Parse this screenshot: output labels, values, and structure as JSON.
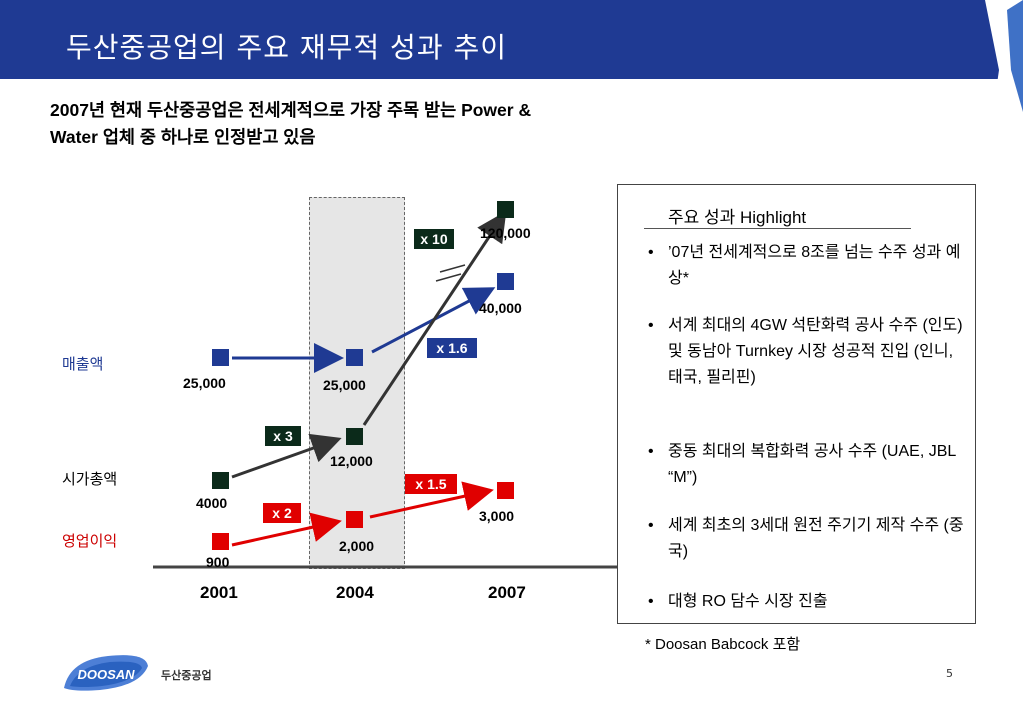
{
  "title": "두산중공업의 주요 재무적 성과 추이",
  "subtitle_line1": "2007년 현재 두산중공업은 전세계적으로 가장 주목 받는 Power &",
  "subtitle_line2": "Water 업체 중 하나로 인정받고 있음",
  "rows": {
    "revenue": {
      "label": "매출액",
      "color": "#1f3a93"
    },
    "market_cap": {
      "label": "시가총액",
      "color": "#000000"
    },
    "operating_profit": {
      "label": "영업이익",
      "color": "#cc0000"
    }
  },
  "years": [
    "2001",
    "2004",
    "2007"
  ],
  "values": {
    "revenue": [
      "25,000",
      "25,000",
      "40,000"
    ],
    "market_cap": [
      "4000",
      "12,000",
      "120,000"
    ],
    "operating_profit": [
      "900",
      "2,000",
      "3,000"
    ]
  },
  "multipliers": {
    "mc_2001_2004": "x 3",
    "mc_2004_2007": "x 10",
    "rev_2004_2007": "x 1.6",
    "op_2001_2004": "x 2",
    "op_2004_2007": "x 1.5"
  },
  "highlight": {
    "title": "주요 성과 Highlight",
    "items": [
      {
        "bullet": "•",
        "text": "’07년 전세계적으로 8조를 넘는 수주 성과 예상*"
      },
      {
        "bullet": "•",
        "text": "서계 최대의 4GW 석탄화력 공사 수주 (인도) 및 동남아 Turnkey 시장 성공적 진입 (인니, 태국, 필리핀)"
      },
      {
        "bullet": "•",
        "text": "중동 최대의 복합화력 공사 수주 (UAE, JBL “M”)"
      },
      {
        "bullet": "•",
        "text": "세계 최초의 3세대 원전 주기기 제작 수주 (중국)"
      },
      {
        "bullet": "•",
        "text": "대형 RO 담수 시장 진출"
      }
    ]
  },
  "footnote": "* Doosan Babcock 포함",
  "footer": {
    "logo_text": "DOOSAN",
    "company": "두산중공업",
    "page": "5"
  },
  "colors": {
    "title_bar": "#1f3a93",
    "accent_blue": "#2a62c0",
    "red": "#e00000",
    "dark": "#0b2a1a"
  }
}
